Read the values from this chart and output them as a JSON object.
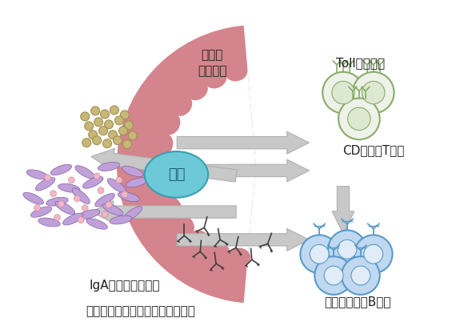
{
  "bg_color": "#ffffff",
  "wall_color": "#d4848c",
  "acetic_color": "#6dc8d8",
  "acetic_text": "酢酸",
  "arrow_color": "#c8c8c8",
  "arrow_edge": "#b0b0b0",
  "toll_fill": "#eef2e8",
  "toll_edge": "#8aac6a",
  "toll_inner": "#dce8d0",
  "b_fill": "#c0d8f0",
  "b_edge": "#5a9ac8",
  "b_inner": "#e0ecf8",
  "bacteria_dot_color": "#c8b878",
  "bacteria_dot_edge": "#a09050",
  "rod_color": "#c0a0d8",
  "rod_edge": "#8060a8",
  "rod_dot_color": "#f0b0c0",
  "antibody_color": "#404040",
  "label_color": "#202020",
  "labels": {
    "bacteria_line1": "大腸菌",
    "bacteria_line2": "菌体成分",
    "toll": "Toll様受容体",
    "cd4": "CD４陽性T細胞",
    "bcell": "大腸菌反応性B細胞",
    "iga": "IgA反応性の変化と",
    "mucus": "粘液層における腸内細菌叢の変化"
  }
}
